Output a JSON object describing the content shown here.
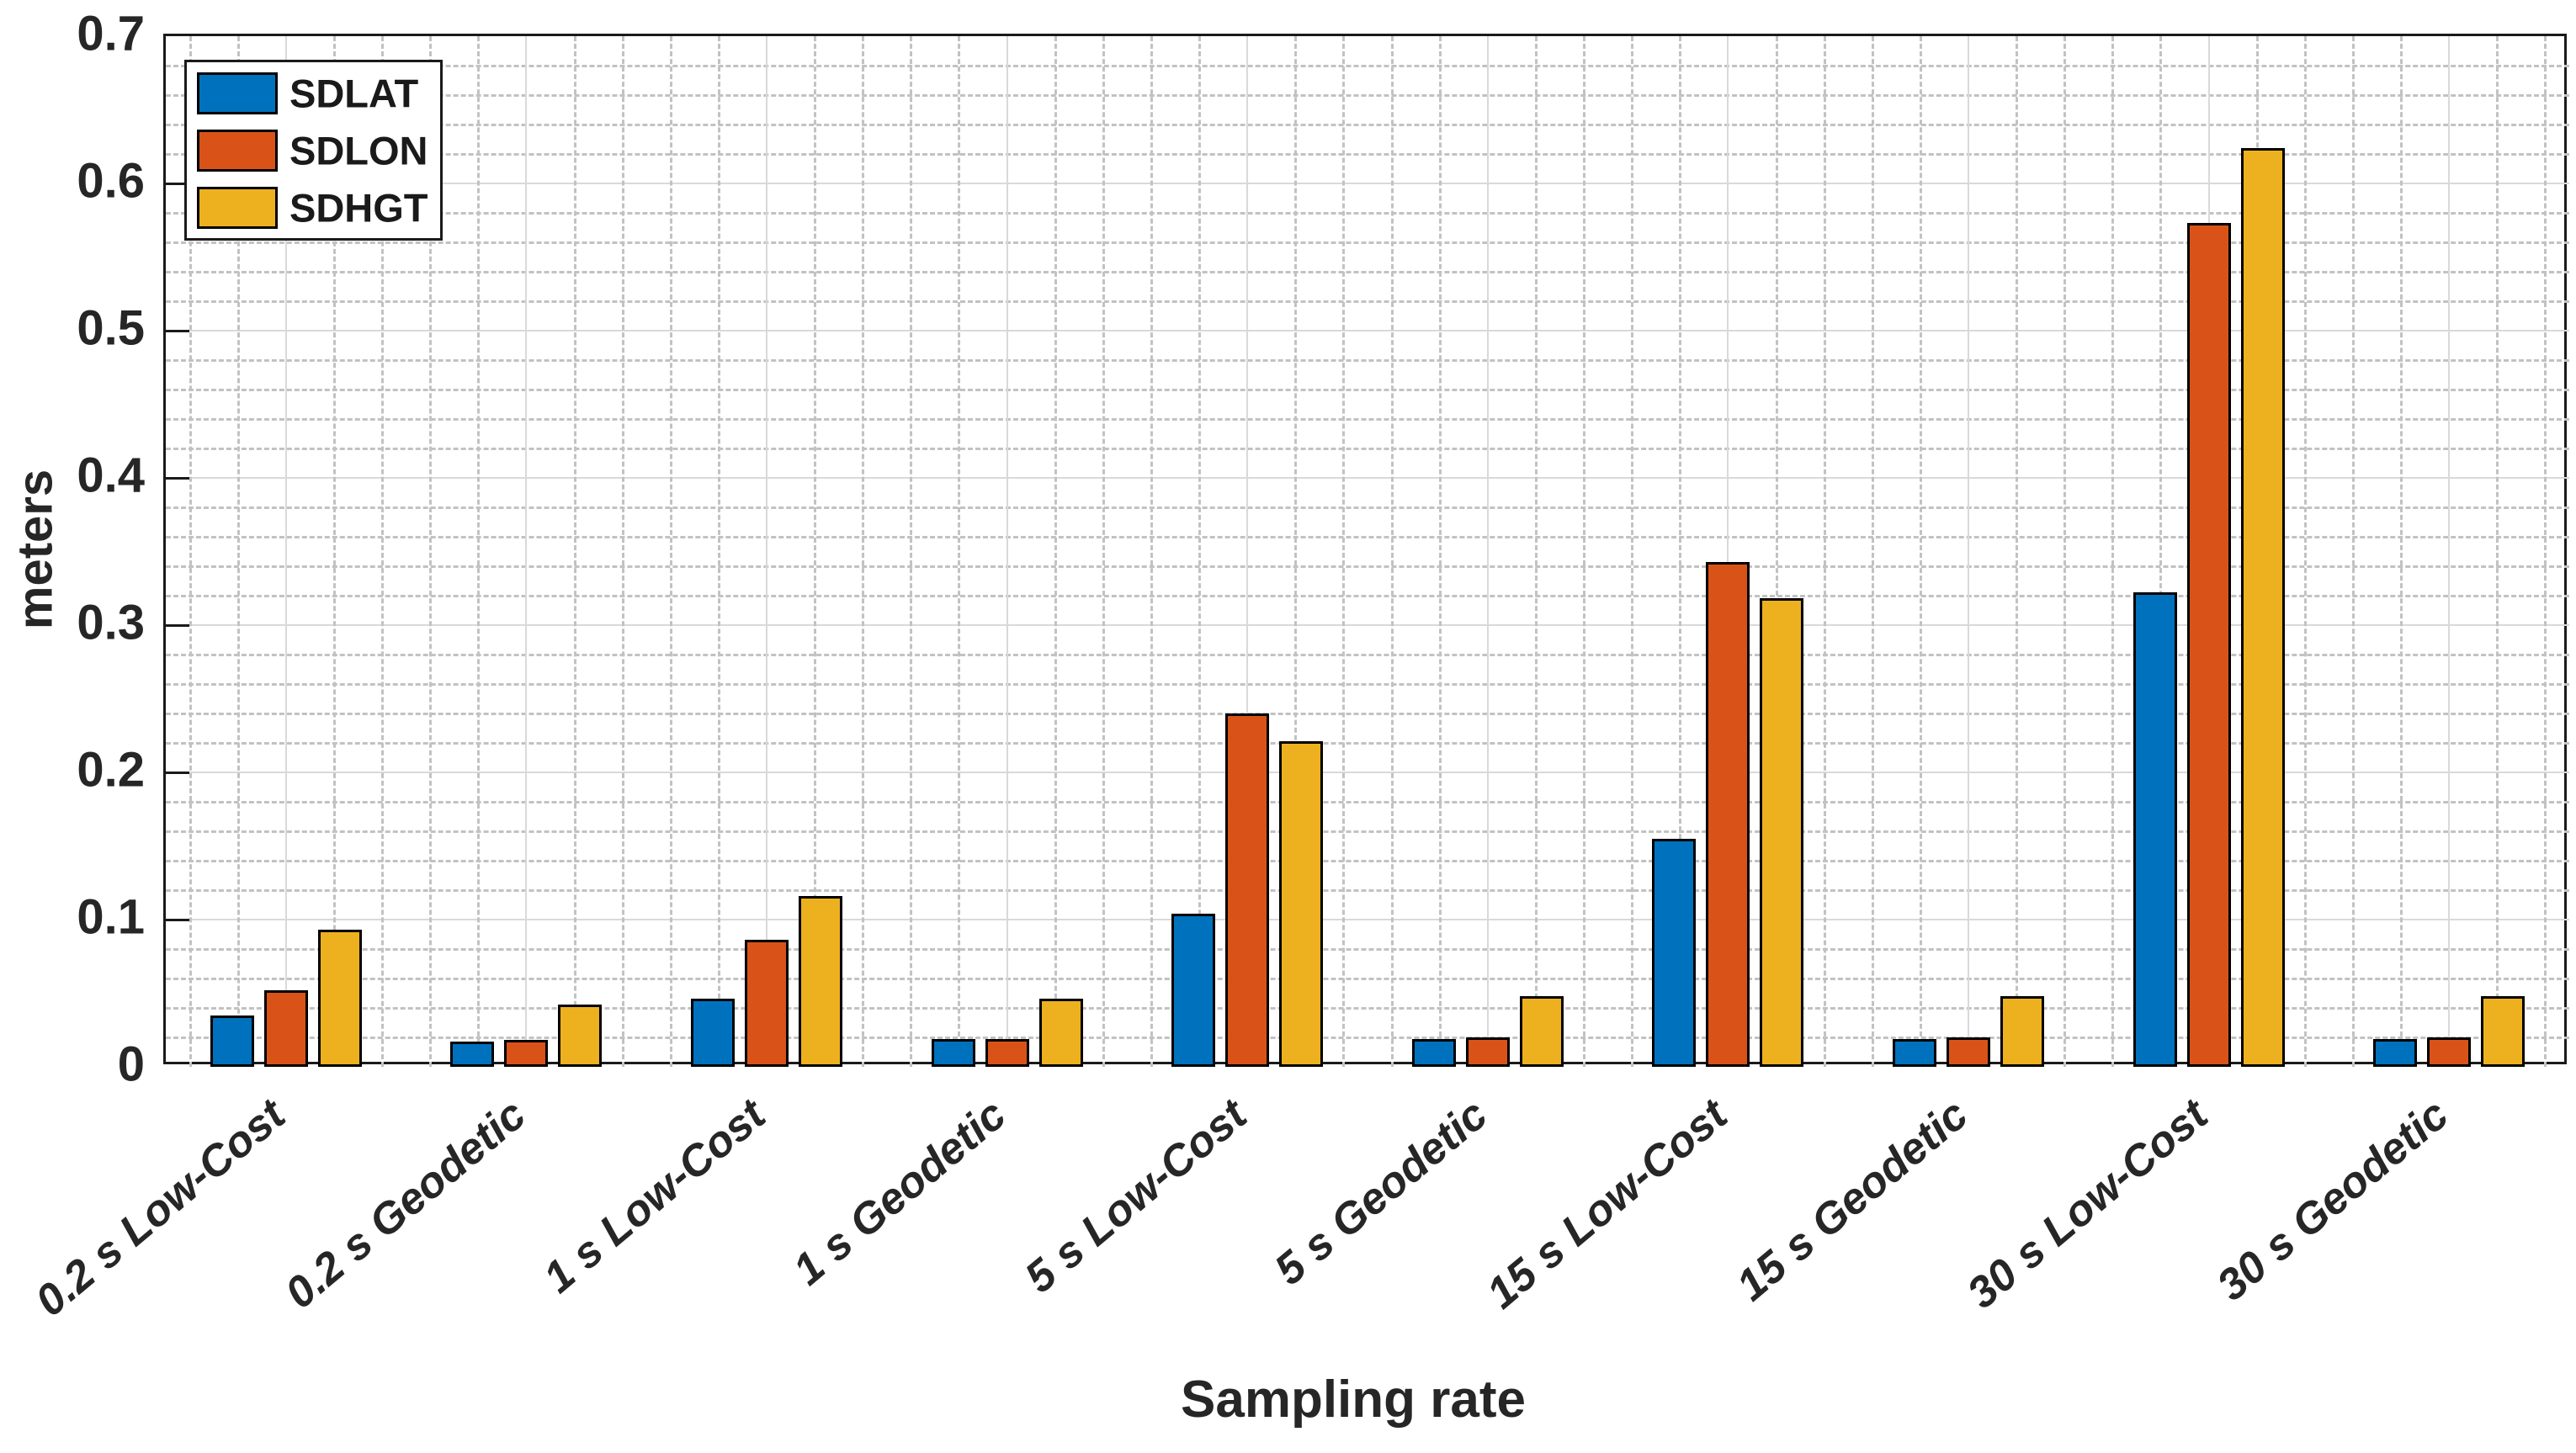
{
  "chart_data": {
    "type": "bar",
    "title": "",
    "xlabel": "Sampling rate",
    "ylabel": "meters",
    "ylim": [
      0,
      0.7
    ],
    "ytick_labels": [
      "0",
      "0.1",
      "0.2",
      "0.3",
      "0.4",
      "0.5",
      "0.6",
      "0.7"
    ],
    "y_minor_step": 0.02,
    "grid": {
      "major": "solid",
      "minor": "dashed",
      "minor_x": true,
      "minor_y": true
    },
    "legend_position": "top-left",
    "categories": [
      "0.2 s Low-Cost",
      "0.2 s Geodetic",
      "1 s Low-Cost",
      "1 s Geodetic",
      "5 s Low-Cost",
      "5 s Geodetic",
      "15 s Low-Cost",
      "15 s Geodetic",
      "30 s Low-Cost",
      "30 s Geodetic"
    ],
    "series": [
      {
        "name": "SDLAT",
        "color": "#0072BD",
        "values": [
          0.035,
          0.017,
          0.046,
          0.019,
          0.104,
          0.019,
          0.155,
          0.019,
          0.322,
          0.019
        ]
      },
      {
        "name": "SDLON",
        "color": "#D95319",
        "values": [
          0.052,
          0.018,
          0.086,
          0.019,
          0.24,
          0.02,
          0.343,
          0.02,
          0.573,
          0.02
        ]
      },
      {
        "name": "SDHGT",
        "color": "#EDB120",
        "values": [
          0.093,
          0.042,
          0.116,
          0.046,
          0.221,
          0.048,
          0.318,
          0.048,
          0.624,
          0.048
        ]
      }
    ],
    "bar_edge_color": "#000000",
    "axis_color": "#1a1a1a",
    "text_color": "#262626"
  }
}
